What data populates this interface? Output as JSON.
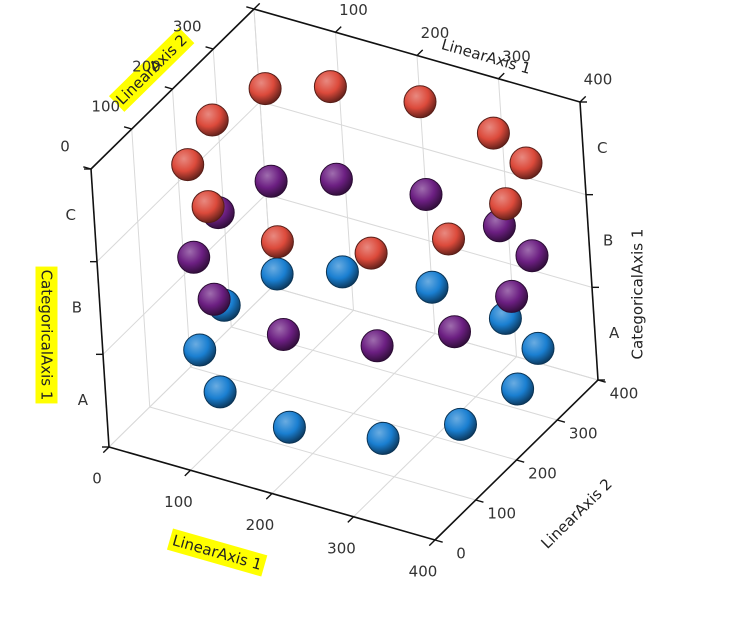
{
  "chart_data": {
    "type": "scatter3d",
    "x_axis": {
      "title": "LinearAxis 1",
      "ticks": [
        "0",
        "100",
        "200",
        "300",
        "400"
      ],
      "range": [
        0,
        400
      ]
    },
    "z_axis": {
      "title": "LinearAxis 2",
      "ticks": [
        "0",
        "100",
        "200",
        "300",
        "400"
      ],
      "range": [
        0,
        400
      ]
    },
    "y_axis": {
      "title": "CategoricalAxis 1",
      "categories": [
        "A",
        "B",
        "C"
      ]
    },
    "grid": true,
    "marker": "sphere",
    "series": [
      {
        "category": "A",
        "color": "#1a7fd1",
        "points": [
          {
            "x": 200,
            "z": 50
          },
          {
            "x": 300,
            "z": 80
          },
          {
            "x": 360,
            "z": 150
          },
          {
            "x": 380,
            "z": 250
          },
          {
            "x": 360,
            "z": 340
          },
          {
            "x": 300,
            "z": 380
          },
          {
            "x": 200,
            "z": 400
          },
          {
            "x": 100,
            "z": 380
          },
          {
            "x": 40,
            "z": 340
          },
          {
            "x": 20,
            "z": 250
          },
          {
            "x": 40,
            "z": 150
          },
          {
            "x": 100,
            "z": 80
          }
        ]
      },
      {
        "category": "B",
        "color": "#6c1f82",
        "points": [
          {
            "x": 200,
            "z": 50
          },
          {
            "x": 300,
            "z": 80
          },
          {
            "x": 360,
            "z": 150
          },
          {
            "x": 380,
            "z": 250
          },
          {
            "x": 360,
            "z": 340
          },
          {
            "x": 300,
            "z": 380
          },
          {
            "x": 200,
            "z": 400
          },
          {
            "x": 100,
            "z": 380
          },
          {
            "x": 40,
            "z": 340
          },
          {
            "x": 20,
            "z": 250
          },
          {
            "x": 40,
            "z": 150
          },
          {
            "x": 100,
            "z": 80
          }
        ]
      },
      {
        "category": "C",
        "color": "#dc4a3b",
        "points": [
          {
            "x": 200,
            "z": 50
          },
          {
            "x": 300,
            "z": 80
          },
          {
            "x": 360,
            "z": 150
          },
          {
            "x": 380,
            "z": 250
          },
          {
            "x": 360,
            "z": 340
          },
          {
            "x": 300,
            "z": 380
          },
          {
            "x": 200,
            "z": 400
          },
          {
            "x": 100,
            "z": 380
          },
          {
            "x": 40,
            "z": 340
          },
          {
            "x": 20,
            "z": 250
          },
          {
            "x": 40,
            "z": 150
          },
          {
            "x": 100,
            "z": 80
          }
        ]
      }
    ],
    "highlighted_titles": [
      "LinearAxis 2",
      "CategoricalAxis 1",
      "LinearAxis 1"
    ],
    "highlight_color": "#ffff00"
  }
}
